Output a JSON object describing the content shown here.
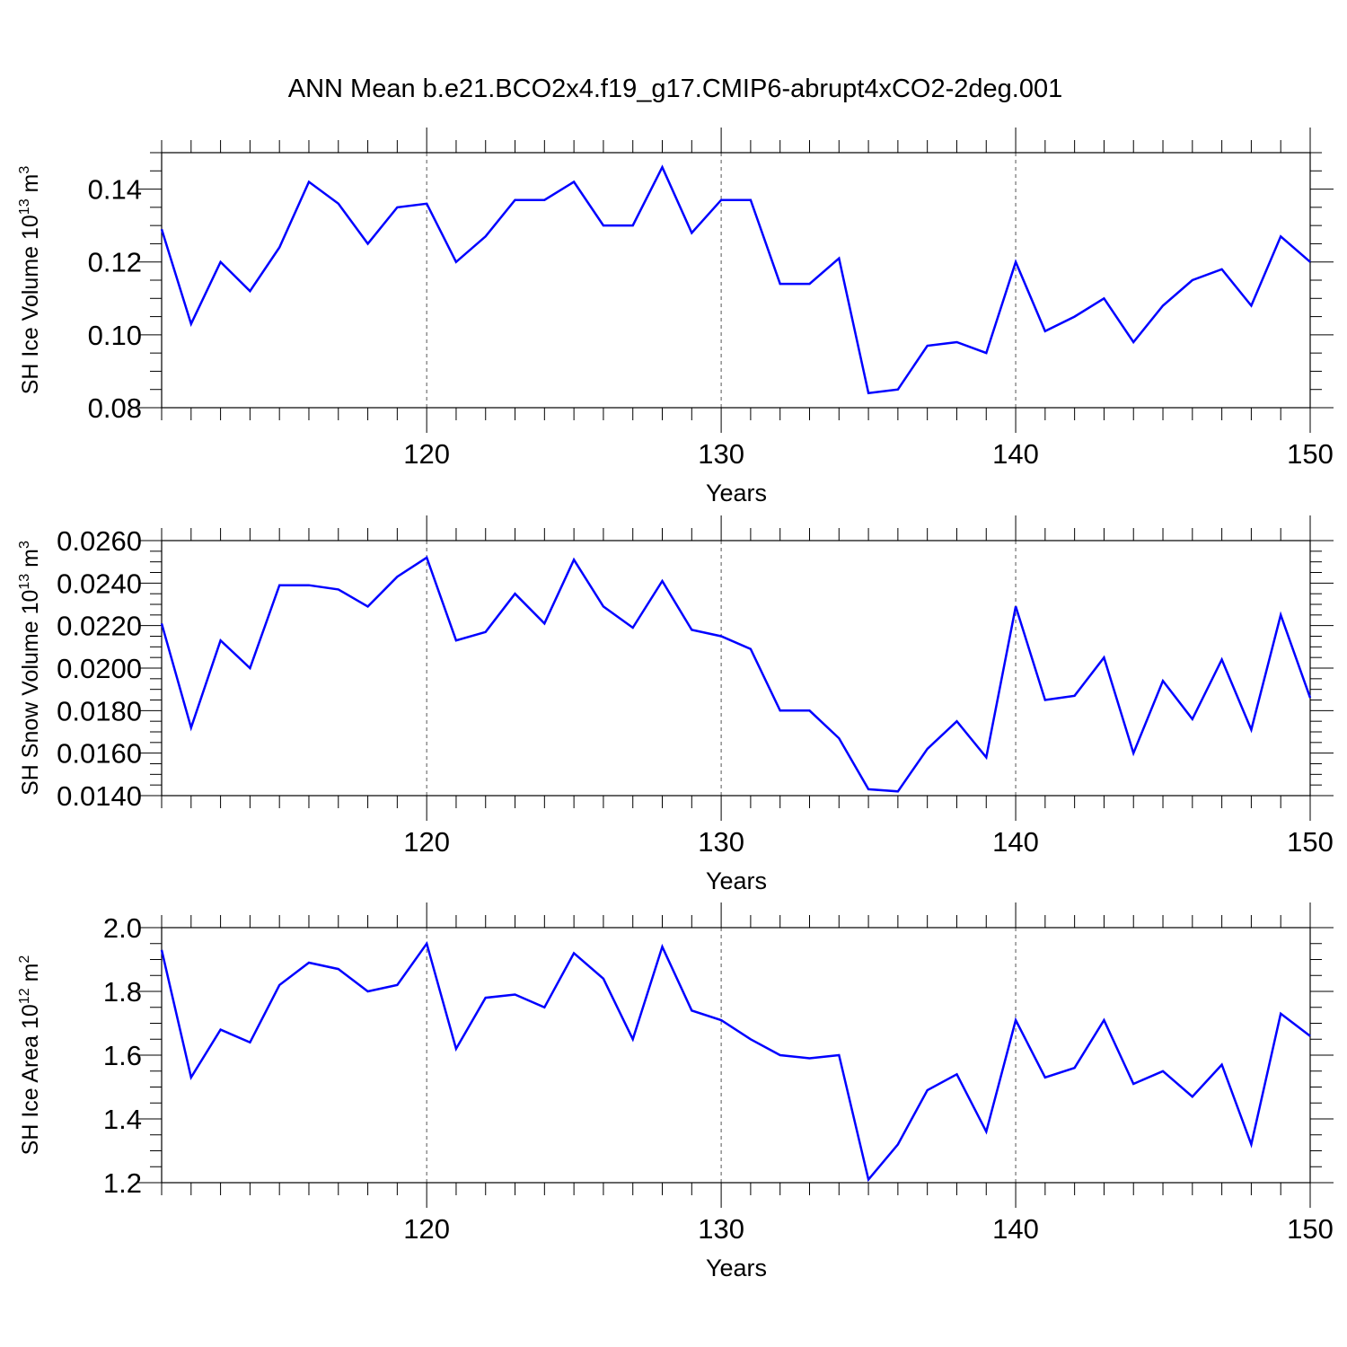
{
  "title": "ANN Mean b.e21.BCO2x4.f19_g17.CMIP6-abrupt4xCO2-2deg.001",
  "line_color": "#0000ff",
  "chart_data": [
    {
      "type": "line",
      "xlabel": "Years",
      "ylabel": {
        "main": "SH Ice Volume 10",
        "sup": "13",
        "unit": " m",
        "unit_sup": "3"
      },
      "xlim": [
        111,
        150
      ],
      "ylim": [
        0.08,
        0.15
      ],
      "yticks": [
        "0.08",
        "0.10",
        "0.12",
        "0.14"
      ],
      "yticks_values": [
        0.08,
        0.1,
        0.12,
        0.14
      ],
      "y_minor_step": 0.005,
      "xticks": [
        "120",
        "130",
        "140",
        "150"
      ],
      "xticks_values": [
        120,
        130,
        140,
        150
      ],
      "grid": "dashed vertical at major x ticks",
      "x": [
        111,
        112,
        113,
        114,
        115,
        116,
        117,
        118,
        119,
        120,
        121,
        122,
        123,
        124,
        125,
        126,
        127,
        128,
        129,
        130,
        131,
        132,
        133,
        134,
        135,
        136,
        137,
        138,
        139,
        140,
        141,
        142,
        143,
        144,
        145,
        146,
        147,
        148,
        149,
        150
      ],
      "y": [
        0.129,
        0.103,
        0.12,
        0.112,
        0.124,
        0.142,
        0.136,
        0.125,
        0.135,
        0.136,
        0.12,
        0.127,
        0.137,
        0.137,
        0.142,
        0.13,
        0.13,
        0.146,
        0.128,
        0.137,
        0.137,
        0.114,
        0.114,
        0.121,
        0.084,
        0.085,
        0.097,
        0.098,
        0.095,
        0.12,
        0.101,
        0.105,
        0.11,
        0.098,
        0.108,
        0.115,
        0.118,
        0.108,
        0.127,
        0.12
      ]
    },
    {
      "type": "line",
      "xlabel": "Years",
      "ylabel": {
        "main": "SH Snow Volume 10",
        "sup": "13",
        "unit": " m",
        "unit_sup": "3"
      },
      "xlim": [
        111,
        150
      ],
      "ylim": [
        0.014,
        0.026
      ],
      "yticks": [
        "0.0140",
        "0.0160",
        "0.0180",
        "0.0200",
        "0.0220",
        "0.0240",
        "0.0260"
      ],
      "yticks_values": [
        0.014,
        0.016,
        0.018,
        0.02,
        0.022,
        0.024,
        0.026
      ],
      "y_minor_step": 0.0005,
      "xticks": [
        "120",
        "130",
        "140",
        "150"
      ],
      "xticks_values": [
        120,
        130,
        140,
        150
      ],
      "grid": "dashed vertical at major x ticks",
      "x": [
        111,
        112,
        113,
        114,
        115,
        116,
        117,
        118,
        119,
        120,
        121,
        122,
        123,
        124,
        125,
        126,
        127,
        128,
        129,
        130,
        131,
        132,
        133,
        134,
        135,
        136,
        137,
        138,
        139,
        140,
        141,
        142,
        143,
        144,
        145,
        146,
        147,
        148,
        149,
        150
      ],
      "y": [
        0.0221,
        0.0172,
        0.0213,
        0.02,
        0.0239,
        0.0239,
        0.0237,
        0.0229,
        0.0243,
        0.0252,
        0.0213,
        0.0217,
        0.0235,
        0.0221,
        0.0251,
        0.0229,
        0.0219,
        0.0241,
        0.0218,
        0.0215,
        0.0209,
        0.018,
        0.018,
        0.0167,
        0.0143,
        0.0142,
        0.0162,
        0.0175,
        0.0158,
        0.0229,
        0.0185,
        0.0187,
        0.0205,
        0.016,
        0.0194,
        0.0176,
        0.0204,
        0.0171,
        0.0225,
        0.0186
      ]
    },
    {
      "type": "line",
      "xlabel": "Years",
      "ylabel": {
        "main": "SH Ice Area 10",
        "sup": "12",
        "unit": " m",
        "unit_sup": "2"
      },
      "xlim": [
        111,
        150
      ],
      "ylim": [
        1.2,
        2.0
      ],
      "yticks": [
        "1.2",
        "1.4",
        "1.6",
        "1.8",
        "2.0"
      ],
      "yticks_values": [
        1.2,
        1.4,
        1.6,
        1.8,
        2.0
      ],
      "y_minor_step": 0.05,
      "xticks": [
        "120",
        "130",
        "140",
        "150"
      ],
      "xticks_values": [
        120,
        130,
        140,
        150
      ],
      "grid": "dashed vertical at major x ticks",
      "x": [
        111,
        112,
        113,
        114,
        115,
        116,
        117,
        118,
        119,
        120,
        121,
        122,
        123,
        124,
        125,
        126,
        127,
        128,
        129,
        130,
        131,
        132,
        133,
        134,
        135,
        136,
        137,
        138,
        139,
        140,
        141,
        142,
        143,
        144,
        145,
        146,
        147,
        148,
        149,
        150
      ],
      "y": [
        1.93,
        1.53,
        1.68,
        1.64,
        1.82,
        1.89,
        1.87,
        1.8,
        1.82,
        1.95,
        1.62,
        1.78,
        1.79,
        1.75,
        1.92,
        1.84,
        1.65,
        1.94,
        1.74,
        1.71,
        1.65,
        1.6,
        1.59,
        1.6,
        1.21,
        1.32,
        1.49,
        1.54,
        1.36,
        1.71,
        1.53,
        1.56,
        1.71,
        1.51,
        1.55,
        1.47,
        1.57,
        1.32,
        1.73,
        1.66
      ]
    }
  ]
}
